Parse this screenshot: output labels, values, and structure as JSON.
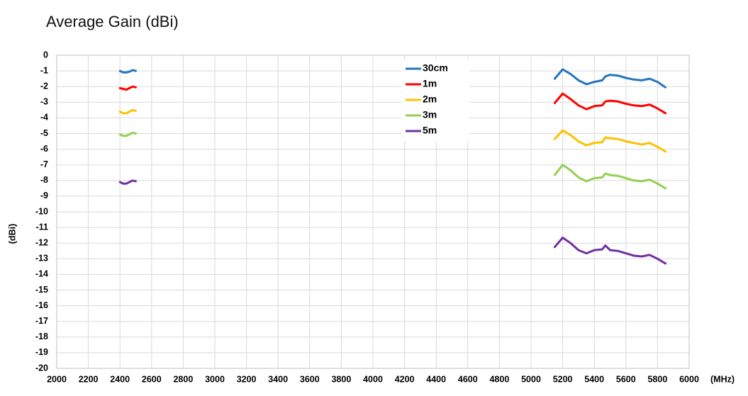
{
  "chart_data": {
    "type": "line",
    "title": "Average Gain (dBi)",
    "x_label": "(MHz)",
    "y_label": "(dBi)",
    "x": [
      2400,
      2420,
      2440,
      2460,
      2480,
      2500,
      null,
      5150,
      5200,
      5250,
      5300,
      5350,
      5400,
      5450,
      5470,
      5500,
      5550,
      5600,
      5650,
      5700,
      5750,
      5800,
      5850
    ],
    "series": [
      {
        "name": "30cm",
        "color": "#2475c0",
        "values": [
          -1.0,
          -1.1,
          -1.1,
          -1.05,
          -0.95,
          -1.0,
          null,
          -1.5,
          -0.9,
          -1.2,
          -1.6,
          -1.85,
          -1.7,
          -1.6,
          -1.35,
          -1.25,
          -1.3,
          -1.45,
          -1.55,
          -1.6,
          -1.5,
          -1.7,
          -2.05
        ]
      },
      {
        "name": "1m",
        "color": "#ff0000",
        "values": [
          -2.1,
          -2.15,
          -2.2,
          -2.1,
          -2.0,
          -2.05,
          null,
          -3.05,
          -2.45,
          -2.8,
          -3.2,
          -3.45,
          -3.25,
          -3.2,
          -2.95,
          -2.9,
          -2.95,
          -3.1,
          -3.2,
          -3.25,
          -3.15,
          -3.4,
          -3.7
        ]
      },
      {
        "name": "2m",
        "color": "#ffc000",
        "values": [
          -3.6,
          -3.7,
          -3.7,
          -3.6,
          -3.5,
          -3.55,
          null,
          -5.35,
          -4.8,
          -5.1,
          -5.5,
          -5.75,
          -5.6,
          -5.55,
          -5.25,
          -5.3,
          -5.35,
          -5.5,
          -5.6,
          -5.7,
          -5.6,
          -5.85,
          -6.15
        ]
      },
      {
        "name": "3m",
        "color": "#92d050",
        "values": [
          -5.05,
          -5.15,
          -5.15,
          -5.05,
          -4.95,
          -5.0,
          null,
          -7.65,
          -7.0,
          -7.35,
          -7.8,
          -8.05,
          -7.85,
          -7.8,
          -7.55,
          -7.65,
          -7.7,
          -7.85,
          -8.0,
          -8.05,
          -7.95,
          -8.2,
          -8.5
        ]
      },
      {
        "name": "5m",
        "color": "#7030a0",
        "values": [
          -8.1,
          -8.2,
          -8.2,
          -8.1,
          -8.0,
          -8.05,
          null,
          -12.25,
          -11.65,
          -12.0,
          -12.45,
          -12.65,
          -12.45,
          -12.4,
          -12.15,
          -12.45,
          -12.5,
          -12.65,
          -12.8,
          -12.85,
          -12.75,
          -13.0,
          -13.3
        ]
      }
    ],
    "xlim": [
      2000,
      6000
    ],
    "xticks": [
      2000,
      2200,
      2400,
      2600,
      2800,
      3000,
      3200,
      3400,
      3600,
      3800,
      4000,
      4200,
      4400,
      4600,
      4800,
      5000,
      5200,
      5400,
      5600,
      5800,
      6000
    ],
    "ylim": [
      -20,
      0
    ],
    "yticks": [
      0,
      -1,
      -2,
      -3,
      -4,
      -5,
      -6,
      -7,
      -8,
      -9,
      -10,
      -11,
      -12,
      -13,
      -14,
      -15,
      -16,
      -17,
      -18,
      -19,
      -20
    ],
    "grid": true,
    "legend": "top"
  }
}
